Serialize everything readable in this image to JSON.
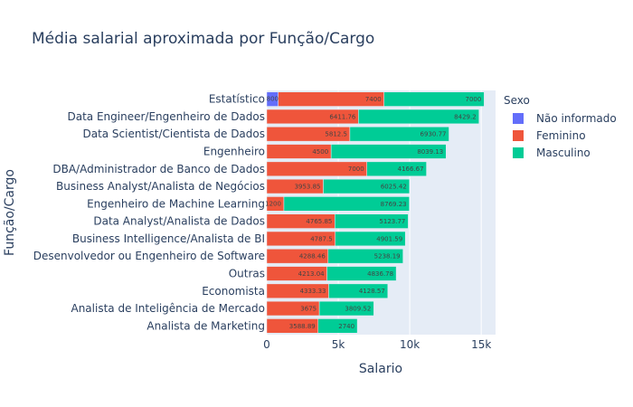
{
  "title": "Média salarial aproximada por Função/Cargo",
  "chart_data": {
    "type": "bar",
    "orientation": "horizontal",
    "barmode": "stack",
    "title": "Média salarial aproximada por Função/Cargo",
    "xlabel": "Salario",
    "ylabel": "Função/Cargo",
    "xlim": [
      0,
      16000
    ],
    "xticks": [
      {
        "value": 0,
        "label": "0"
      },
      {
        "value": 5000,
        "label": "5k"
      },
      {
        "value": 10000,
        "label": "10k"
      },
      {
        "value": 15000,
        "label": "15k"
      }
    ],
    "categories": [
      "Estatístico",
      "Data Engineer/Engenheiro de Dados",
      "Data Scientist/Cientista de Dados",
      "Engenheiro",
      "DBA/Administrador de Banco de Dados",
      "Business Analyst/Analista de Negócios",
      "Engenheiro de Machine Learning",
      "Data Analyst/Analista de Dados",
      "Business Intelligence/Analista de BI",
      "Desenvolvedor ou Engenheiro de Software",
      "Outras",
      "Economista",
      "Analista de Inteligência de Mercado",
      "Analista de Marketing"
    ],
    "legend_title": "Sexo",
    "legend_position": "right",
    "series": [
      {
        "name": "Não informado",
        "color": "#636efa",
        "values": [
          800,
          null,
          null,
          null,
          null,
          null,
          null,
          null,
          null,
          null,
          null,
          null,
          null,
          null
        ],
        "labels": [
          "800",
          "",
          "",
          "",
          "",
          "",
          "",
          "",
          "",
          "",
          "",
          "",
          "",
          ""
        ]
      },
      {
        "name": "Feminino",
        "color": "#ef553b",
        "values": [
          7400,
          6411.76,
          5812.5,
          4500,
          7000,
          3953.85,
          1200,
          4765.85,
          4787.5,
          4288.46,
          4213.04,
          4333.33,
          3675,
          3588.89
        ],
        "labels": [
          "7400",
          "6411.76",
          "5812.5",
          "4500",
          "7000",
          "3953.85",
          "1200",
          "4765.85",
          "4787.5",
          "4288.46",
          "4213.04",
          "4333.33",
          "3675",
          "3588.89"
        ]
      },
      {
        "name": "Masculino",
        "color": "#00cc96",
        "values": [
          7000,
          8429.2,
          6930.77,
          8039.13,
          4166.67,
          6025.42,
          8769.23,
          5123.77,
          4901.59,
          5238.19,
          4836.78,
          4128.57,
          3809.52,
          2740
        ],
        "labels": [
          "7000",
          "8429.2",
          "6930.77",
          "8039.13",
          "4166.67",
          "6025.42",
          "8769.23",
          "5123.77",
          "4901.59",
          "5238.19",
          "4836.78",
          "4128.57",
          "3809.52",
          "2740"
        ]
      }
    ],
    "plot_background": "#e5ecf6",
    "grid": true
  }
}
